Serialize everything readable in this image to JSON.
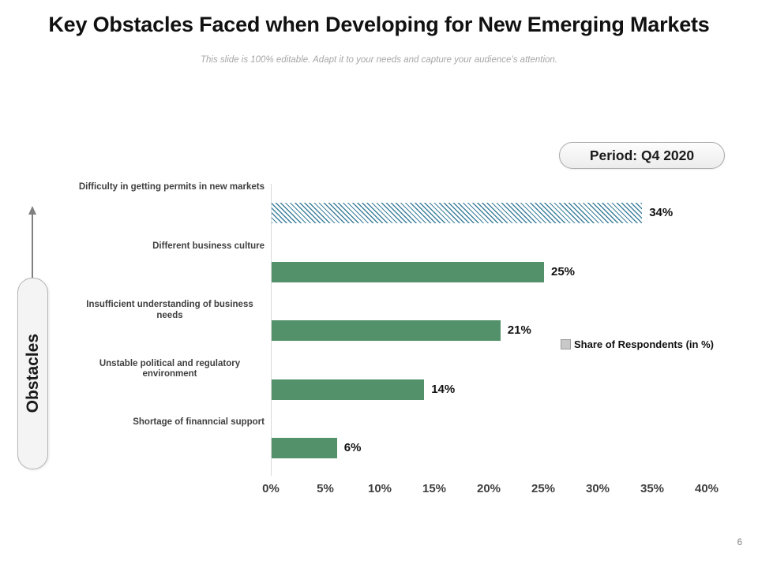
{
  "header": {
    "title": "Key Obstacles Faced when Developing for New Emerging Markets",
    "subtitle": "This slide is 100% editable. Adapt it to your needs and capture your audience’s attention."
  },
  "period": {
    "label": "Period: Q4 2020"
  },
  "chart_data": {
    "type": "bar",
    "orientation": "horizontal",
    "title": "",
    "xlabel": "",
    "ylabel": "Obstacles",
    "categories": [
      "Difficulty in getting permits in new markets",
      "Different business culture",
      "Insufficient understanding of business needs",
      "Unstable political and regulatory environment",
      "Shortage of finanncial support"
    ],
    "series": [
      {
        "name": "Share of Respondents (in %)",
        "values": [
          34,
          25,
          21,
          14,
          6
        ]
      }
    ],
    "value_label_suffix": "%",
    "xlim": [
      0,
      40
    ],
    "x_ticks": [
      "0%",
      "5%",
      "10%",
      "15%",
      "20%",
      "25%",
      "30%",
      "35%",
      "40%"
    ],
    "grid": false,
    "legend_position": "right-middle",
    "hatched_bar_index": 0,
    "colors": {
      "bar_solid": "#52916A",
      "bar_hatch_stripe": "#3D7F9C",
      "legend_swatch": "#C8C8C8"
    }
  },
  "footer": {
    "page_number": "6"
  }
}
